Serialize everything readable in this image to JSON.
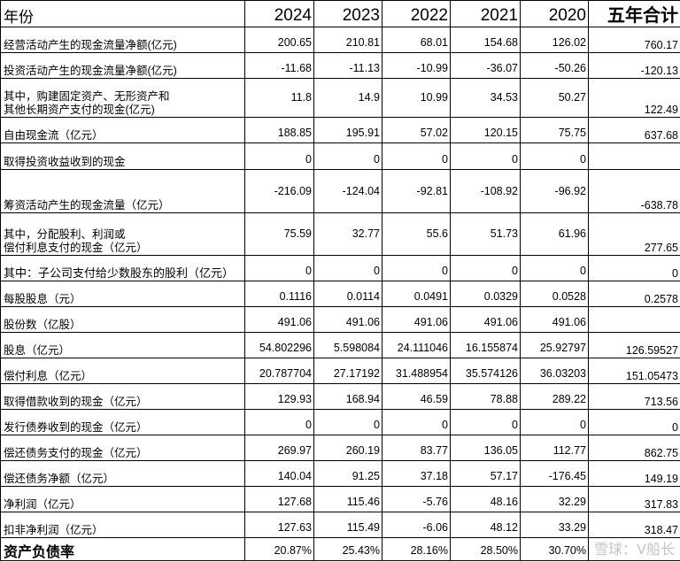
{
  "header": {
    "label": "年份",
    "years": [
      "2024",
      "2023",
      "2022",
      "2021",
      "2020"
    ],
    "total": "五年合计"
  },
  "rows": [
    {
      "label": [
        "经营活动产生的现金流量净额(亿元)"
      ],
      "values": [
        "200.65",
        "210.81",
        "68.01",
        "154.68",
        "126.02"
      ],
      "total": "760.17"
    },
    {
      "label": [
        "投资活动产生的现金流量净额(亿元)"
      ],
      "values": [
        "-11.68",
        "-11.13",
        "-10.99",
        "-36.07",
        "-50.26"
      ],
      "total": "-120.13"
    },
    {
      "label": [
        "其中，购建固定资产、无形资产和",
        "其他长期资产支付的现金(亿元)"
      ],
      "values": [
        "11.8",
        "14.9",
        "10.99",
        "34.53",
        "50.27"
      ],
      "total": "122.49"
    },
    {
      "label": [
        "自由现金流（亿元）"
      ],
      "values": [
        "188.85",
        "195.91",
        "57.02",
        "120.15",
        "75.75"
      ],
      "total": "637.68"
    },
    {
      "label": [
        "取得投资收益收到的现金"
      ],
      "values": [
        "0",
        "0",
        "0",
        "0",
        "0"
      ],
      "total": ""
    },
    {
      "label": [
        "筹资活动产生的现金流量（亿元）"
      ],
      "values": [
        "-216.09",
        "-124.04",
        "-92.81",
        "-108.92",
        "-96.92"
      ],
      "total": "-638.78"
    },
    {
      "label": [
        "其中，分配股利、利润或",
        "偿付利息支付的现金（亿元）"
      ],
      "values": [
        "75.59",
        "32.77",
        "55.6",
        "51.73",
        "61.96"
      ],
      "total": "277.65"
    },
    {
      "label": [
        "其中：子公司支付给少数股东的股利（亿元）"
      ],
      "values": [
        "0",
        "0",
        "0",
        "0",
        "0"
      ],
      "total": "0"
    },
    {
      "label": [
        "每股股息（元）"
      ],
      "values": [
        "0.1116",
        "0.0114",
        "0.0491",
        "0.0329",
        "0.0528"
      ],
      "total": "0.2578"
    },
    {
      "label": [
        "股份数（亿股）"
      ],
      "values": [
        "491.06",
        "491.06",
        "491.06",
        "491.06",
        "491.06"
      ],
      "total": ""
    },
    {
      "label": [
        "股息（亿元）"
      ],
      "values": [
        "54.802296",
        "5.598084",
        "24.111046",
        "16.155874",
        "25.92797"
      ],
      "total": "126.59527"
    },
    {
      "label": [
        "偿付利息（亿元）"
      ],
      "values": [
        "20.787704",
        "27.17192",
        "31.488954",
        "35.574126",
        "36.03203"
      ],
      "total": "151.05473"
    },
    {
      "label": [
        "取得借款收到的现金（亿元）"
      ],
      "values": [
        "129.93",
        "168.94",
        "46.59",
        "78.88",
        "289.22"
      ],
      "total": "713.56"
    },
    {
      "label": [
        "发行债券收到的现金（亿元）"
      ],
      "values": [
        "0",
        "0",
        "0",
        "0",
        "0"
      ],
      "total": "0"
    },
    {
      "label": [
        "偿还债务支付的现金（亿元）"
      ],
      "values": [
        "269.97",
        "260.19",
        "83.77",
        "136.05",
        "112.77"
      ],
      "total": "862.75"
    },
    {
      "label": [
        "偿还债务净额（亿元）"
      ],
      "values": [
        "140.04",
        "91.25",
        "37.18",
        "57.17",
        "-176.45"
      ],
      "total": "149.19"
    },
    {
      "label": [
        "净利润（亿元）"
      ],
      "values": [
        "127.68",
        "115.46",
        "-5.76",
        "48.16",
        "32.29"
      ],
      "total": "317.83"
    },
    {
      "label": [
        "扣非净利润（亿元）"
      ],
      "values": [
        "127.63",
        "115.49",
        "-6.06",
        "48.12",
        "33.29"
      ],
      "total": "318.47"
    },
    {
      "label": [
        "资产负债率"
      ],
      "values": [
        "20.87%",
        "25.43%",
        "28.16%",
        "28.50%",
        "30.70%"
      ],
      "total": ""
    }
  ],
  "watermark": "雪球：V船长"
}
